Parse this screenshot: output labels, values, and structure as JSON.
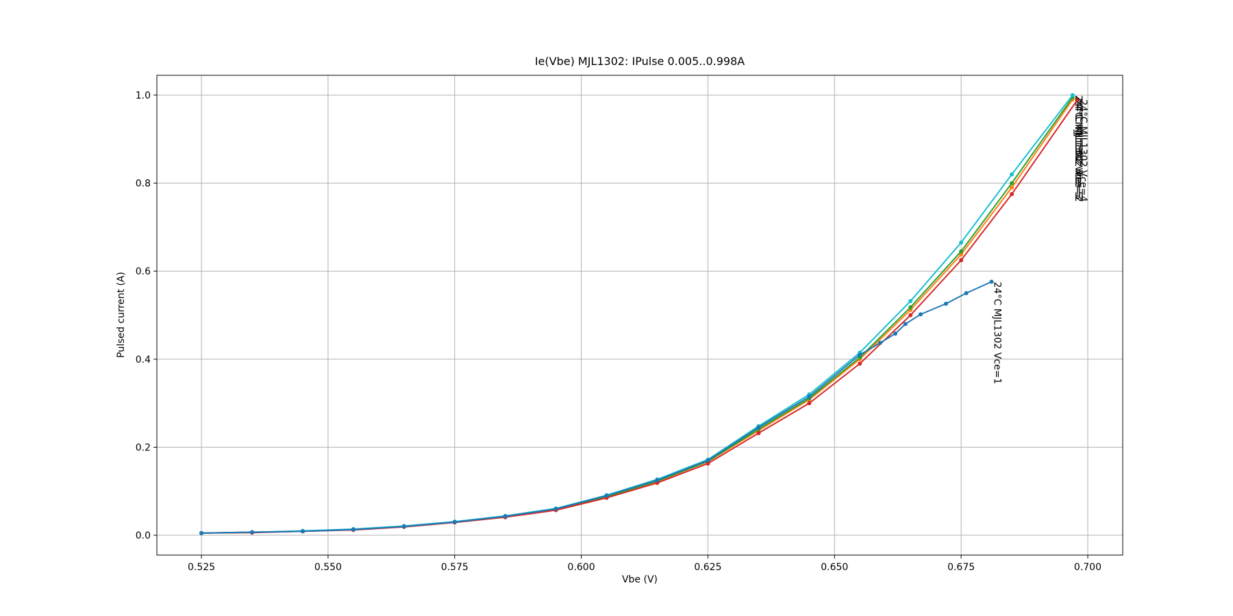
{
  "chart_data": {
    "type": "line",
    "title": "Ie(Vbe) MJL1302: IPulse 0.005..0.998A",
    "x_label": "Vbe (V)",
    "y_label": "Pulsed current (A)",
    "xlim": [
      0.5162,
      0.7069
    ],
    "ylim": [
      -0.045,
      1.045
    ],
    "xticks": [
      0.525,
      {
        "value": 0.55,
        "label": "0.550"
      },
      0.575,
      {
        "value": 0.6,
        "label": "0.600"
      },
      0.625,
      {
        "value": 0.65,
        "label": "0.650"
      },
      0.675,
      {
        "value": 0.7,
        "label": "0.700"
      }
    ],
    "yticks": [
      {
        "value": 0,
        "label": "0.0"
      },
      0.2,
      0.4,
      0.6,
      0.8,
      {
        "value": 1,
        "label": "1.0"
      }
    ],
    "grid": true,
    "series": [
      {
        "name": "24°C MJL1302 Vce=2",
        "color": "#ff7f0e",
        "x": [
          0.525,
          0.535,
          0.545,
          0.555,
          0.565,
          0.575,
          0.585,
          0.595,
          0.605,
          0.615,
          0.625,
          0.635,
          0.645,
          0.655,
          0.665,
          0.675,
          0.685,
          0.697
        ],
        "values": [
          0.005,
          0.007,
          0.009,
          0.013,
          0.02,
          0.03,
          0.042,
          0.058,
          0.087,
          0.122,
          0.167,
          0.238,
          0.308,
          0.4,
          0.512,
          0.638,
          0.79,
          0.99
        ]
      },
      {
        "name": "24°C MJL1302 Vce=3",
        "color": "#2ca02c",
        "x": [
          0.525,
          0.535,
          0.545,
          0.555,
          0.565,
          0.575,
          0.585,
          0.595,
          0.605,
          0.615,
          0.625,
          0.635,
          0.645,
          0.655,
          0.665,
          0.675,
          0.685,
          0.697
        ],
        "values": [
          0.005,
          0.007,
          0.009,
          0.013,
          0.02,
          0.03,
          0.043,
          0.059,
          0.088,
          0.123,
          0.168,
          0.241,
          0.311,
          0.404,
          0.518,
          0.645,
          0.8,
          0.995
        ]
      },
      {
        "name": "24°C MJL1302 Vce=4",
        "color": "#d62728",
        "x": [
          0.525,
          0.535,
          0.545,
          0.555,
          0.565,
          0.575,
          0.585,
          0.595,
          0.605,
          0.615,
          0.625,
          0.635,
          0.645,
          0.655,
          0.665,
          0.675,
          0.685,
          0.698
        ],
        "values": [
          0.005,
          0.006,
          0.009,
          0.012,
          0.019,
          0.029,
          0.041,
          0.057,
          0.085,
          0.119,
          0.163,
          0.232,
          0.3,
          0.39,
          0.5,
          0.625,
          0.775,
          0.99
        ]
      },
      {
        "name": "24°C MJL1302 Vce=5",
        "color": "#17becf",
        "x": [
          0.525,
          0.535,
          0.545,
          0.555,
          0.565,
          0.575,
          0.585,
          0.595,
          0.605,
          0.615,
          0.625,
          0.635,
          0.645,
          0.655,
          0.665,
          0.675,
          0.685,
          0.697
        ],
        "values": [
          0.005,
          0.007,
          0.01,
          0.014,
          0.021,
          0.031,
          0.044,
          0.061,
          0.091,
          0.127,
          0.172,
          0.248,
          0.32,
          0.415,
          0.532,
          0.665,
          0.82,
          1.0
        ]
      },
      {
        "name": "24°C MJL1302 Vce=1",
        "color": "#1f77b4",
        "x": [
          0.525,
          0.535,
          0.545,
          0.555,
          0.565,
          0.575,
          0.585,
          0.595,
          0.605,
          0.615,
          0.625,
          0.635,
          0.645,
          0.655,
          0.659,
          0.662,
          0.664,
          0.667,
          0.672,
          0.676,
          0.681
        ],
        "values": [
          0.005,
          0.007,
          0.009,
          0.013,
          0.02,
          0.03,
          0.043,
          0.06,
          0.09,
          0.125,
          0.17,
          0.245,
          0.315,
          0.41,
          0.437,
          0.458,
          0.48,
          0.502,
          0.526,
          0.55,
          0.576
        ]
      }
    ]
  }
}
